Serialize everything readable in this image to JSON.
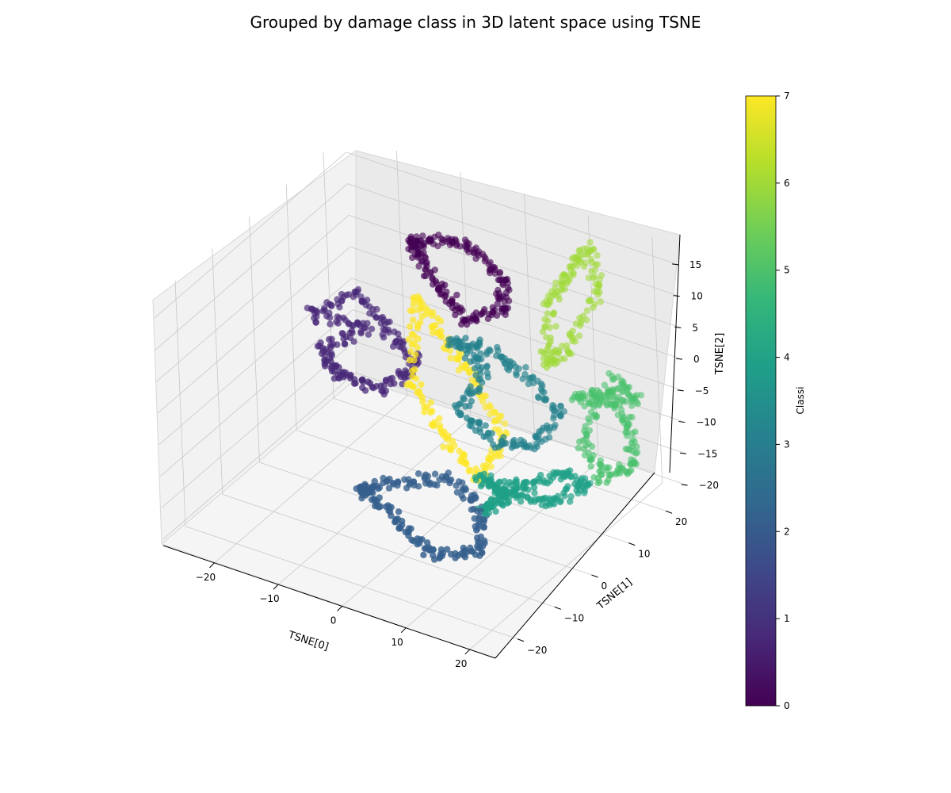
{
  "chart_data": {
    "type": "scatter",
    "projection": "3d",
    "title": "Grouped by damage class in 3D latent space using TSNE",
    "xlabel": "TSNE[0]",
    "ylabel": "TSNE[1]",
    "zlabel": "TSNE[2]",
    "xlim": [
      -28,
      24
    ],
    "ylim": [
      -26,
      26
    ],
    "zlim": [
      -21,
      18
    ],
    "xticks": [
      "−20",
      "−10",
      "0",
      "10",
      "20"
    ],
    "xtick_values": [
      -20,
      -10,
      0,
      10,
      20
    ],
    "yticks": [
      "−20",
      "−10",
      "0",
      "10",
      "20"
    ],
    "ytick_values": [
      -20,
      -10,
      0,
      10,
      20
    ],
    "zticks": [
      "−20",
      "−15",
      "−10",
      "−5",
      "0",
      "5",
      "10",
      "15"
    ],
    "ztick_values": [
      -20,
      -15,
      -10,
      -5,
      0,
      5,
      10,
      15
    ],
    "grid": true,
    "colormap": "viridis",
    "colorbar": {
      "label": "Classi",
      "min": 0,
      "max": 7,
      "ticks": [
        "0",
        "1",
        "2",
        "3",
        "4",
        "5",
        "6",
        "7"
      ],
      "tick_values": [
        0,
        1,
        2,
        3,
        4,
        5,
        6,
        7
      ],
      "colors": [
        "#440154",
        "#482878",
        "#3e4989",
        "#31688e",
        "#26828e",
        "#1f9e89",
        "#35b779",
        "#6ece58",
        "#b5de2b",
        "#fde725"
      ]
    },
    "series": [
      {
        "class": 0,
        "color": "#440154",
        "x": [
          -10,
          -6,
          -1,
          4,
          6,
          2,
          -3,
          -8
        ],
        "y": [
          12,
          14,
          15,
          13,
          9,
          6,
          8,
          11
        ],
        "z": [
          14,
          15,
          14,
          12,
          10,
          9,
          11,
          13
        ]
      },
      {
        "class": 1,
        "color": "#482878",
        "x": [
          -22,
          -16,
          -10,
          -4,
          -8,
          -14,
          -18,
          -12
        ],
        "y": [
          5,
          8,
          6,
          3,
          -1,
          -2,
          1,
          4
        ],
        "z": [
          2,
          6,
          3,
          1,
          -2,
          -1,
          0,
          4
        ]
      },
      {
        "class": 2,
        "color": "#355f8d",
        "x": [
          -6,
          0,
          6,
          12,
          10,
          4,
          -2,
          -8
        ],
        "y": [
          -8,
          -10,
          -12,
          -9,
          -5,
          -3,
          -6,
          -7
        ],
        "z": [
          -14,
          -16,
          -18,
          -17,
          -13,
          -11,
          -12,
          -15
        ]
      },
      {
        "class": 3,
        "color": "#26828e",
        "x": [
          2,
          6,
          10,
          14,
          12,
          8,
          4,
          6
        ],
        "y": [
          2,
          5,
          8,
          10,
          6,
          2,
          0,
          4
        ],
        "z": [
          8,
          6,
          2,
          -4,
          -8,
          -6,
          -2,
          3
        ]
      },
      {
        "class": 4,
        "color": "#1fa187",
        "x": [
          8,
          12,
          16,
          20,
          18,
          14,
          10,
          12
        ],
        "y": [
          -2,
          0,
          3,
          6,
          2,
          -3,
          -5,
          -1
        ],
        "z": [
          -10,
          -12,
          -14,
          -11,
          -8,
          -9,
          -13,
          -12
        ]
      },
      {
        "class": 5,
        "color": "#4ac16d",
        "x": [
          14,
          18,
          22,
          24,
          20,
          16,
          18,
          22
        ],
        "y": [
          14,
          16,
          15,
          12,
          10,
          12,
          18,
          17
        ],
        "z": [
          -4,
          -2,
          -6,
          -10,
          -12,
          -8,
          -1,
          -3
        ]
      },
      {
        "class": 6,
        "color": "#a0da39",
        "x": [
          10,
          12,
          14,
          16,
          13,
          11
        ],
        "y": [
          15,
          17,
          19,
          18,
          14,
          12
        ],
        "z": [
          10,
          14,
          18,
          12,
          4,
          2
        ]
      },
      {
        "class": 7,
        "color": "#fde725",
        "x": [
          -2,
          0,
          2,
          4,
          3,
          0,
          -2
        ],
        "y": [
          0,
          4,
          8,
          12,
          6,
          2,
          -2
        ],
        "z": [
          14,
          6,
          -2,
          -12,
          -16,
          -8,
          2
        ]
      }
    ]
  }
}
